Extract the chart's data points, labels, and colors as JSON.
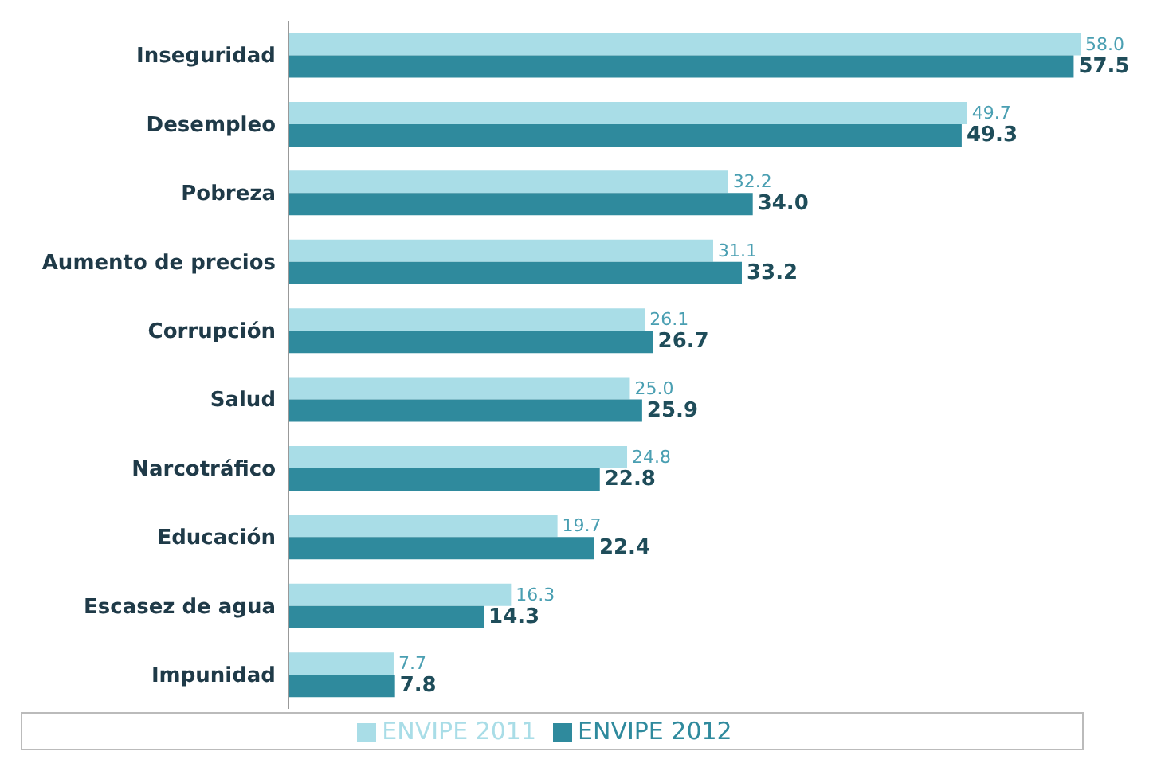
{
  "chart_data": {
    "type": "bar",
    "orientation": "horizontal",
    "categories": [
      "Inseguridad",
      "Desempleo",
      "Pobreza",
      "Aumento de precios",
      "Corrupción",
      "Salud",
      "Narcotráfico",
      "Educación",
      "Escasez de agua",
      "Impunidad"
    ],
    "series": [
      {
        "name": "ENVIPE 2011",
        "color": "#a9dde7",
        "values": [
          58.0,
          49.7,
          32.2,
          31.1,
          26.1,
          25.0,
          24.8,
          19.7,
          16.3,
          7.7
        ],
        "value_labels": [
          "58.0",
          "49.7",
          "32.2",
          "31.1",
          "26.1",
          "25.0",
          "24.8",
          "19.7",
          "16.3",
          "7.7"
        ]
      },
      {
        "name": "ENVIPE 2012",
        "color": "#2f8a9d",
        "values": [
          57.5,
          49.3,
          34.0,
          33.2,
          26.7,
          25.9,
          22.8,
          22.4,
          14.3,
          7.8
        ],
        "value_labels": [
          "57.5",
          "49.3",
          "34.0",
          "33.2",
          "26.7",
          "25.9",
          "22.8",
          "22.4",
          "14.3",
          "7.8"
        ]
      }
    ],
    "tick_labels": "y",
    "legend": "bottom"
  }
}
